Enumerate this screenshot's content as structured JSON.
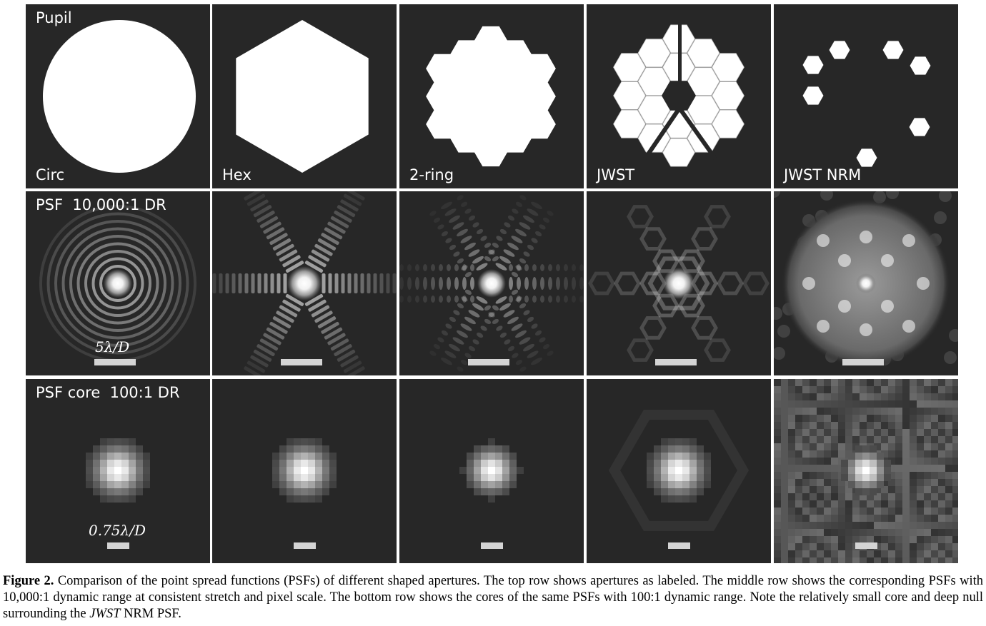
{
  "labels": {
    "row1_tl": "Pupil",
    "row2_tl": "PSF  10,000:1 DR",
    "row3_tl": "PSF core  100:1 DR",
    "apertures": [
      "Circ",
      "Hex",
      "2-ring",
      "JWST",
      "JWST NRM"
    ]
  },
  "scale_labels": {
    "psf": "5λ/D",
    "core": "0.75λ/D"
  },
  "caption": {
    "fig": "Figure 2.",
    "text1": " Comparison of the point spread functions (PSFs) of different shaped apertures. The top row shows apertures as labeled. The middle row shows the corresponding PSFs with 10,000:1 dynamic range at consistent stretch and pixel scale. The bottom row shows the cores of the same PSFs with 100:1 dynamic range. Note the relatively small core and deep null surrounding the ",
    "em": "JWST",
    "text2": " NRM PSF."
  },
  "colors": {
    "panel_bg": "#272727",
    "pupil_fill": "#ffffff",
    "scalebar": "#d4d4d4"
  }
}
